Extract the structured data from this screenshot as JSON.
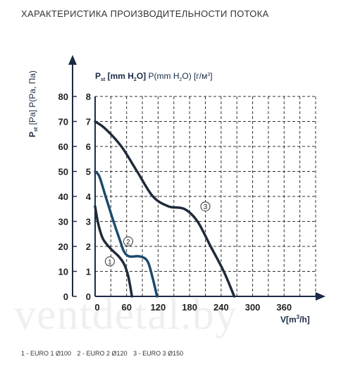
{
  "title": "ХАРАКТЕРИСТИКА ПРОИЗВОДИТЕЛЬНОСТИ ПОТОКА",
  "watermark": "ventdetal.by",
  "chart_data": {
    "type": "line",
    "ylabel_left": "P st [Pa] P(Pa, Па)",
    "ylabel_left_main": "P",
    "ylabel_left_sub": "st",
    "ylabel_left_rest": "[Pa] P(Pa, Па)",
    "ylabel_right_main": "P",
    "ylabel_right_sub": "st",
    "ylabel_right_bold": "[mm H",
    "ylabel_right_bold_sub": "2",
    "ylabel_right_bold_end": "O]",
    "ylabel_right_rest": "P(mm H",
    "ylabel_right_rest_sub": "2",
    "ylabel_right_rest_end": "O) [г/м",
    "ylabel_right_rest_sup": "3",
    "ylabel_right_rest_close": "]",
    "xlabel_main": "V[m",
    "xlabel_sup": "3",
    "xlabel_rest": "/h]",
    "x_ticks": [
      "0",
      "60",
      "120",
      "180",
      "240",
      "300",
      "360"
    ],
    "y_ticks_pa": [
      "0",
      "10",
      "20",
      "30",
      "40",
      "50",
      "60",
      "70",
      "80"
    ],
    "y_ticks_mm": [
      "0",
      "1",
      "2",
      "3",
      "4",
      "5",
      "6",
      "7",
      "8"
    ],
    "xlim": [
      0,
      420
    ],
    "ylim_mm": [
      0,
      8
    ],
    "grid": true,
    "series": [
      {
        "label": "1",
        "color": "#1f2a3a",
        "points": [
          [
            0,
            3.6
          ],
          [
            6,
            2.9
          ],
          [
            15,
            2.3
          ],
          [
            30,
            1.9
          ],
          [
            45,
            1.6
          ],
          [
            55,
            1.3
          ],
          [
            62,
            0.9
          ],
          [
            67,
            0.4
          ],
          [
            70,
            0
          ]
        ],
        "marker_at": [
          28,
          1.4
        ]
      },
      {
        "label": "2",
        "color": "#1b4a6e",
        "points": [
          [
            0,
            5.0
          ],
          [
            8,
            4.8
          ],
          [
            20,
            4.0
          ],
          [
            35,
            3.0
          ],
          [
            48,
            2.2
          ],
          [
            55,
            1.8
          ],
          [
            65,
            1.6
          ],
          [
            85,
            1.6
          ],
          [
            100,
            1.4
          ],
          [
            110,
            0.7
          ],
          [
            118,
            0
          ]
        ],
        "marker_at": [
          63,
          2.2
        ]
      },
      {
        "label": "3",
        "color": "#1f2a3a",
        "points": [
          [
            0,
            7.0
          ],
          [
            20,
            6.7
          ],
          [
            50,
            6.0
          ],
          [
            80,
            5.0
          ],
          [
            110,
            4.0
          ],
          [
            140,
            3.6
          ],
          [
            170,
            3.5
          ],
          [
            195,
            3.0
          ],
          [
            220,
            2.0
          ],
          [
            245,
            1.0
          ],
          [
            265,
            0
          ]
        ],
        "marker_at": [
          210,
          3.6
        ]
      }
    ]
  },
  "footer": {
    "items": [
      "1 - EURO 1 Ø100",
      "2 - EURO 2 Ø120",
      "3 - EURO 3 Ø150"
    ]
  }
}
